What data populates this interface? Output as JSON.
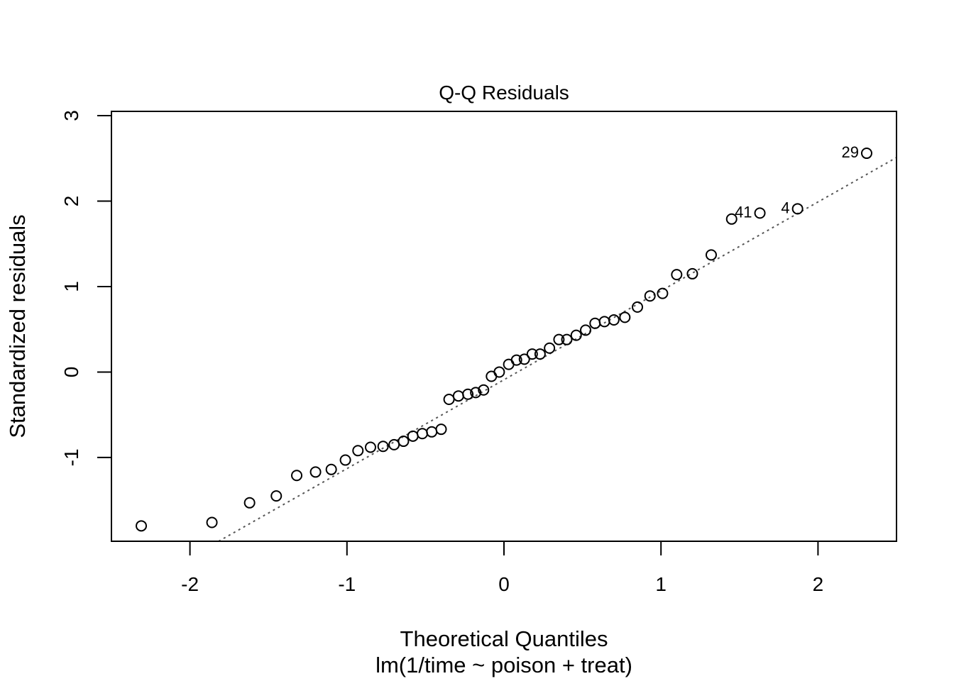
{
  "chart_data": {
    "type": "scatter",
    "title": "Q-Q Residuals",
    "xlabel": "Theoretical Quantiles",
    "subtitle": "lm(1/time ~ poison + treat)",
    "ylabel": "Standardized residuals",
    "xlim": [
      -2.5,
      2.5
    ],
    "ylim": [
      -1.98,
      3.05
    ],
    "xticks": [
      -2,
      -1,
      0,
      1,
      2
    ],
    "xtick_labels": [
      "-2",
      "-1",
      "0",
      "1",
      "2"
    ],
    "yticks": [
      -1,
      0,
      1,
      2,
      3
    ],
    "ytick_labels": [
      "-1",
      "0",
      "1",
      "2",
      "3"
    ],
    "grid": false,
    "reference_line": {
      "slope": 1.04,
      "intercept": -0.09,
      "style": "dotted",
      "color": "#555555"
    },
    "point_labels": [
      {
        "text": "29",
        "x": 2.31,
        "y": 2.56
      },
      {
        "text": "41",
        "x": 1.63,
        "y": 1.86
      },
      {
        "text": "4",
        "x": 1.87,
        "y": 1.91
      }
    ],
    "points": [
      [
        -2.31,
        -1.8
      ],
      [
        -1.86,
        -1.76
      ],
      [
        -1.62,
        -1.53
      ],
      [
        -1.45,
        -1.45
      ],
      [
        -1.32,
        -1.21
      ],
      [
        -1.2,
        -1.17
      ],
      [
        -1.1,
        -1.14
      ],
      [
        -1.01,
        -1.03
      ],
      [
        -0.93,
        -0.92
      ],
      [
        -0.85,
        -0.88
      ],
      [
        -0.77,
        -0.87
      ],
      [
        -0.7,
        -0.85
      ],
      [
        -0.64,
        -0.81
      ],
      [
        -0.58,
        -0.75
      ],
      [
        -0.52,
        -0.72
      ],
      [
        -0.46,
        -0.7
      ],
      [
        -0.4,
        -0.67
      ],
      [
        -0.35,
        -0.32
      ],
      [
        -0.29,
        -0.28
      ],
      [
        -0.23,
        -0.26
      ],
      [
        -0.18,
        -0.24
      ],
      [
        -0.13,
        -0.21
      ],
      [
        -0.08,
        -0.05
      ],
      [
        -0.03,
        0.0
      ],
      [
        0.03,
        0.09
      ],
      [
        0.08,
        0.14
      ],
      [
        0.13,
        0.15
      ],
      [
        0.18,
        0.21
      ],
      [
        0.23,
        0.21
      ],
      [
        0.29,
        0.28
      ],
      [
        0.35,
        0.38
      ],
      [
        0.4,
        0.38
      ],
      [
        0.46,
        0.43
      ],
      [
        0.52,
        0.49
      ],
      [
        0.58,
        0.57
      ],
      [
        0.64,
        0.59
      ],
      [
        0.7,
        0.61
      ],
      [
        0.77,
        0.64
      ],
      [
        0.85,
        0.76
      ],
      [
        0.93,
        0.89
      ],
      [
        1.01,
        0.92
      ],
      [
        1.1,
        1.14
      ],
      [
        1.2,
        1.15
      ],
      [
        1.32,
        1.37
      ],
      [
        1.45,
        1.79
      ],
      [
        1.63,
        1.86
      ],
      [
        1.87,
        1.91
      ],
      [
        2.31,
        2.56
      ]
    ]
  }
}
